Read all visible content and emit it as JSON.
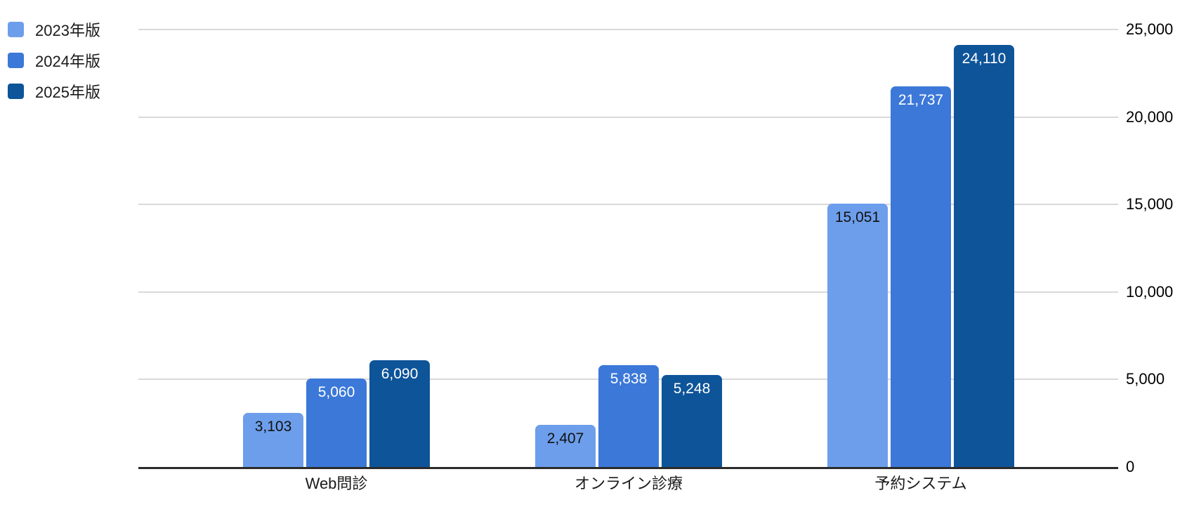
{
  "chart_data": {
    "type": "bar",
    "title": "",
    "categories": [
      "Web問診",
      "オンライン診療",
      "予約システム"
    ],
    "series": [
      {
        "name": "2023年版",
        "color": "#6d9eeb",
        "values": [
          3103,
          2407,
          15051
        ],
        "value_labels": [
          "3,103",
          "2,407",
          "15,051"
        ],
        "value_label_color": "#111111"
      },
      {
        "name": "2024年版",
        "color": "#3c78d8",
        "values": [
          5060,
          5838,
          21737
        ],
        "value_labels": [
          "5,060",
          "5,838",
          "21,737"
        ],
        "value_label_color": "#ffffff"
      },
      {
        "name": "2025年版",
        "color": "#0e5499",
        "values": [
          6090,
          5248,
          24110
        ],
        "value_labels": [
          "6,090",
          "5,248",
          "24,110"
        ],
        "value_label_color": "#ffffff"
      }
    ],
    "y_axis": {
      "side": "right",
      "min": 0,
      "max": 25000,
      "step": 5000,
      "tick_labels": [
        "0",
        "5,000",
        "10,000",
        "15,000",
        "20,000",
        "25,000"
      ]
    },
    "legend": {
      "position": "top-left",
      "entries": [
        "2023年版",
        "2024年版",
        "2025年版"
      ]
    },
    "grid": true,
    "colors": {
      "gridline": "#d9d9d9",
      "axis_line": "#2b2b2b",
      "tick_label": "#000000",
      "category_label": "#1a1a1a",
      "background": "#ffffff"
    }
  }
}
